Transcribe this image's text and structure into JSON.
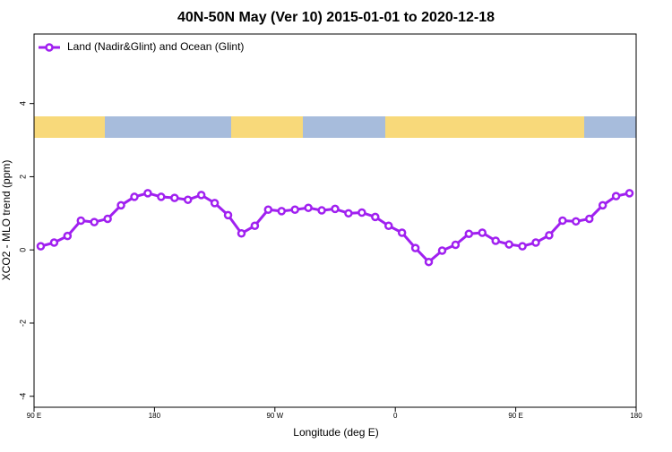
{
  "chart_data": {
    "type": "line",
    "title": "40N-50N May (Ver 10)   2015-01-01 to 2020-12-18",
    "x_label": "Longitude (deg E)",
    "y_label": "XCO2 - MLO trend (ppm)",
    "xlim": [
      90,
      540
    ],
    "ylim": [
      -4.3,
      5.9
    ],
    "xticks": [
      {
        "value": 90,
        "label": "90 E"
      },
      {
        "value": 180,
        "label": "180"
      },
      {
        "value": 270,
        "label": "90 W"
      },
      {
        "value": 360,
        "label": "0"
      },
      {
        "value": 450,
        "label": "90 E"
      },
      {
        "value": 540,
        "label": "180"
      }
    ],
    "yticks": [
      -4,
      -2,
      0,
      2,
      4
    ],
    "legend": "top-left",
    "x": [
      95,
      105,
      115,
      125,
      135,
      145,
      155,
      165,
      175,
      185,
      195,
      205,
      215,
      225,
      235,
      245,
      255,
      265,
      275,
      285,
      295,
      305,
      315,
      325,
      335,
      345,
      355,
      365,
      375,
      385,
      395,
      405,
      415,
      425,
      435,
      445,
      455,
      465,
      475,
      485,
      495,
      505,
      515,
      525,
      535
    ],
    "series": [
      {
        "name": "Land (Nadir&Glint) and Ocean (Glint)",
        "color": "#a020f0",
        "values": [
          0.1,
          0.2,
          0.38,
          0.8,
          0.76,
          0.85,
          1.22,
          1.45,
          1.55,
          1.45,
          1.42,
          1.37,
          1.5,
          1.28,
          0.95,
          0.45,
          0.66,
          1.1,
          1.06,
          1.1,
          1.15,
          1.08,
          1.12,
          1.0,
          1.02,
          0.9,
          0.66,
          0.47,
          0.05,
          -0.33,
          -0.02,
          0.14,
          0.44,
          0.47,
          0.25,
          0.15,
          0.1,
          0.2,
          0.4,
          0.8,
          0.78,
          0.85,
          1.22,
          1.47,
          1.55
        ]
      }
    ]
  }
}
